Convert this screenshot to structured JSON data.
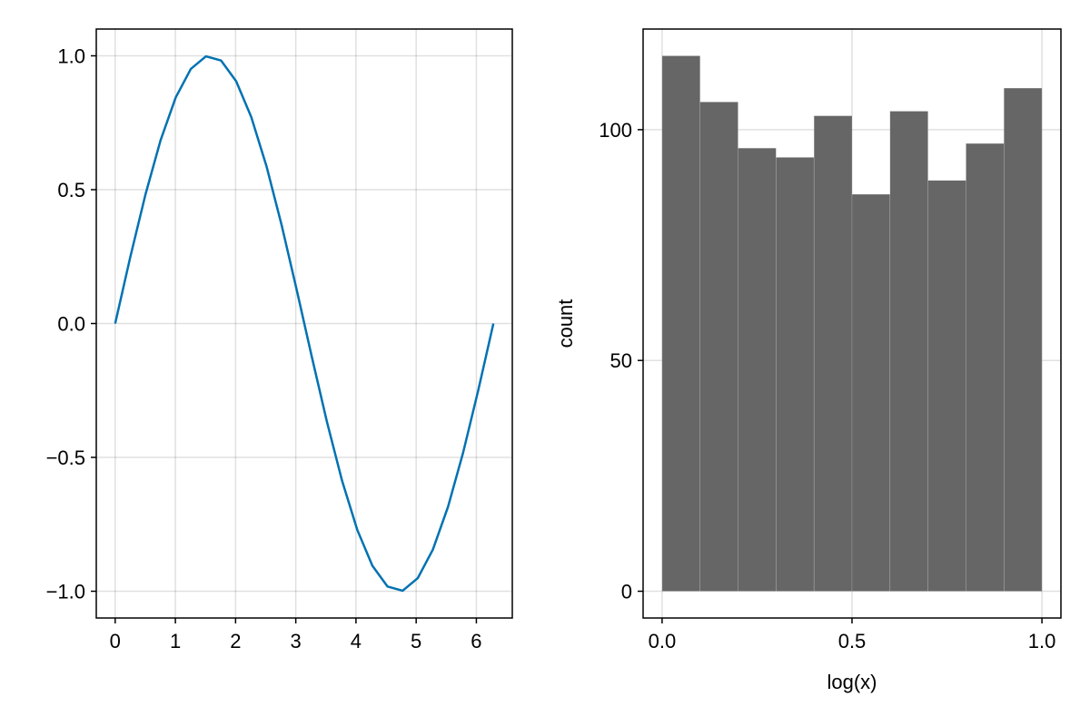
{
  "chart_data": [
    {
      "type": "line",
      "title": "",
      "xlabel": "",
      "ylabel": "",
      "xlim": [
        -0.314,
        6.597
      ],
      "ylim": [
        -1.1,
        1.1
      ],
      "grid": true,
      "x_ticks": [
        0,
        1,
        2,
        3,
        4,
        5,
        6
      ],
      "x_tick_labels": [
        "0",
        "1",
        "2",
        "3",
        "4",
        "5",
        "6"
      ],
      "y_ticks": [
        -1.0,
        -0.5,
        0.0,
        0.5,
        1.0
      ],
      "y_tick_labels": [
        "−1.0",
        "−0.5",
        "0.0",
        "0.5",
        "1.0"
      ],
      "series": [
        {
          "color": "#0072b2",
          "x": [
            0.0,
            0.2513,
            0.5027,
            0.754,
            1.0053,
            1.2566,
            1.508,
            1.7593,
            2.0106,
            2.2619,
            2.5133,
            2.7646,
            3.0159,
            3.2673,
            3.5186,
            3.7699,
            4.0212,
            4.2726,
            4.5239,
            4.7752,
            5.0265,
            5.2779,
            5.5292,
            5.7805,
            6.0319,
            6.2832
          ],
          "y": [
            0.0,
            0.2487,
            0.4818,
            0.6845,
            0.8443,
            0.9511,
            0.998,
            0.9823,
            0.9048,
            0.7705,
            0.5878,
            0.3681,
            0.1253,
            -0.1253,
            -0.3681,
            -0.5878,
            -0.7705,
            -0.9048,
            -0.9823,
            -0.998,
            -0.9511,
            -0.8443,
            -0.6845,
            -0.4818,
            -0.2487,
            0.0
          ]
        }
      ]
    },
    {
      "type": "bar",
      "title": "",
      "xlabel": "log(x)",
      "ylabel": "count",
      "xlim": [
        -0.05,
        1.05
      ],
      "ylim": [
        -5.8,
        121.8
      ],
      "grid": true,
      "x_ticks": [
        0.0,
        0.5,
        1.0
      ],
      "x_tick_labels": [
        "0.0",
        "0.5",
        "1.0"
      ],
      "y_ticks": [
        0,
        50,
        100
      ],
      "y_tick_labels": [
        "0",
        "50",
        "100"
      ],
      "color": "#666666",
      "bin_edges": [
        0.0,
        0.1,
        0.2,
        0.3,
        0.4,
        0.5,
        0.6,
        0.7,
        0.8,
        0.9,
        1.0
      ],
      "values": [
        116,
        106,
        96,
        94,
        103,
        86,
        104,
        89,
        97,
        109
      ]
    }
  ]
}
